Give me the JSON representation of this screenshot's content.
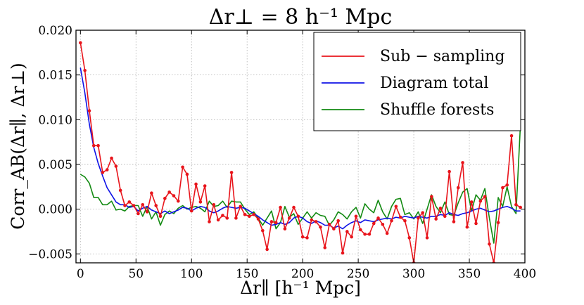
{
  "chart_data": {
    "type": "line",
    "title": "Δr⊥ = 8 h⁻¹ Mpc",
    "xlabel": "Δr∥ [h⁻¹ Mpc]",
    "ylabel": "Corr_AB(Δr∥, Δr⊥)",
    "xlim": [
      -4,
      400
    ],
    "ylim": [
      -0.006,
      0.02
    ],
    "xticks": [
      0,
      50,
      100,
      150,
      200,
      250,
      300,
      350,
      400
    ],
    "xtick_labels": [
      "0",
      "50",
      "100",
      "150",
      "200",
      "250",
      "300",
      "350",
      "400"
    ],
    "yticks": [
      -0.005,
      0.0,
      0.005,
      0.01,
      0.015,
      0.02
    ],
    "ytick_labels": [
      "−0.005",
      "0.000",
      "0.005",
      "0.010",
      "0.015",
      "0.020"
    ],
    "grid": true,
    "legend_position": "top-right",
    "series": [
      {
        "name": "Sub − sampling",
        "color": "#e8141b",
        "markers": true,
        "x": [
          0,
          4,
          8,
          12,
          16,
          20,
          24,
          28,
          32,
          36,
          40,
          44,
          48,
          52,
          56,
          60,
          64,
          68,
          72,
          76,
          80,
          84,
          88,
          92,
          96,
          100,
          104,
          108,
          112,
          116,
          120,
          124,
          128,
          132,
          136,
          140,
          144,
          148,
          152,
          156,
          160,
          164,
          168,
          172,
          176,
          180,
          184,
          188,
          192,
          196,
          200,
          204,
          208,
          212,
          216,
          220,
          224,
          228,
          232,
          236,
          240,
          244,
          248,
          252,
          256,
          260,
          264,
          268,
          272,
          276,
          280,
          284,
          288,
          292,
          296,
          300,
          304,
          308,
          312,
          316,
          320,
          324,
          328,
          332,
          336,
          340,
          344,
          348,
          352,
          356,
          360,
          364,
          368,
          372,
          376,
          380,
          384,
          388,
          392,
          396
        ],
        "y": [
          0.0186,
          0.0155,
          0.011,
          0.0071,
          0.0071,
          0.0041,
          0.0044,
          0.0057,
          0.0048,
          0.0021,
          0.0004,
          0.0008,
          0.0004,
          -0.0005,
          0.0005,
          -0.0003,
          0.0018,
          0.0004,
          -0.0008,
          0.0012,
          0.0019,
          0.0015,
          0.0009,
          0.0047,
          0.0039,
          -0.0002,
          0.0028,
          0.0008,
          0.0026,
          -0.0014,
          0.0005,
          -0.0012,
          -0.0007,
          -0.001,
          0.0041,
          -0.001,
          0.0003,
          -0.0006,
          -0.0008,
          -0.0006,
          -0.0011,
          -0.0024,
          -0.0045,
          -0.0014,
          -0.0015,
          0.0002,
          -0.0022,
          -0.001,
          0.0002,
          -0.0008,
          -0.0031,
          -0.0032,
          -0.0012,
          -0.0014,
          -0.002,
          -0.0043,
          -0.0017,
          -0.0022,
          -0.0013,
          -0.0049,
          -0.0025,
          -0.0031,
          -0.0008,
          -0.0023,
          -0.0028,
          -0.0028,
          -0.0016,
          -0.001,
          -0.0017,
          -0.0027,
          -0.0013,
          0.0003,
          -0.0009,
          -0.0013,
          -0.0032,
          -0.006,
          -0.001,
          -0.0004,
          -0.0032,
          0.0014,
          -0.0011,
          0.0001,
          -0.0008,
          0.0042,
          -0.0014,
          0.0024,
          0.0052,
          -0.002,
          0.0008,
          -0.0016,
          0.0009,
          0.0014,
          -0.0039,
          -0.006,
          -0.0015,
          0.0024,
          0.0027,
          0.0082,
          0.0005,
          0.0002
        ]
      },
      {
        "name": "Diagram total",
        "color": "#0f12e6",
        "markers": false,
        "x": [
          0,
          4,
          8,
          12,
          16,
          20,
          24,
          28,
          32,
          36,
          40,
          44,
          48,
          52,
          56,
          60,
          64,
          68,
          72,
          76,
          80,
          84,
          88,
          92,
          96,
          100,
          104,
          108,
          112,
          116,
          120,
          124,
          128,
          132,
          136,
          140,
          144,
          148,
          152,
          156,
          160,
          164,
          168,
          172,
          176,
          180,
          184,
          188,
          192,
          196,
          200,
          204,
          208,
          212,
          216,
          220,
          224,
          228,
          232,
          236,
          240,
          244,
          248,
          252,
          256,
          260,
          264,
          268,
          272,
          276,
          280,
          284,
          288,
          292,
          296,
          300,
          304,
          308,
          312,
          316,
          320,
          324,
          328,
          332,
          336,
          340,
          344,
          348,
          352,
          356,
          360,
          364,
          368,
          372,
          376,
          380,
          384,
          388,
          392,
          396
        ],
        "y": [
          0.0158,
          0.013,
          0.0095,
          0.0069,
          0.0051,
          0.0037,
          0.0024,
          0.0016,
          0.0008,
          0.0005,
          0.0005,
          0.0002,
          0.0003,
          -0.0002,
          0.0001,
          0.0003,
          -0.0001,
          -0.0003,
          -0.0005,
          -0.0002,
          -0.0005,
          -0.0003,
          -0.0001,
          0.0002,
          0.0001,
          -0.0002,
          0.0001,
          0.0003,
          0.0002,
          -0.0002,
          -0.0004,
          -0.0002,
          0.0001,
          0.0003,
          0.0002,
          0.0001,
          0.0002,
          0.0001,
          -0.0002,
          -0.0005,
          -0.0008,
          -0.0012,
          -0.0015,
          -0.0018,
          -0.0017,
          -0.0015,
          -0.0017,
          -0.0015,
          -0.001,
          -0.0008,
          -0.001,
          -0.0014,
          -0.0016,
          -0.0013,
          -0.0015,
          -0.0018,
          -0.0018,
          -0.0021,
          -0.0019,
          -0.0022,
          -0.0018,
          -0.0015,
          -0.0013,
          -0.0015,
          -0.0012,
          -0.0013,
          -0.0014,
          -0.0012,
          -0.0011,
          -0.001,
          -0.0011,
          -0.0009,
          -0.001,
          -0.0008,
          -0.0009,
          -0.001,
          -0.0008,
          -0.0009,
          -0.001,
          -0.0008,
          -0.0008,
          -0.0006,
          -0.0007,
          -0.0004,
          -0.0006,
          -0.0007,
          -0.0005,
          -0.0004,
          -0.0002,
          0.0,
          0.0001,
          -0.0001,
          -0.0003,
          -0.0002,
          0.0,
          0.0002,
          0.0003,
          0.0001,
          -0.0002,
          -0.0002
        ]
      },
      {
        "name": "Shuffle forests",
        "color": "#138a12",
        "markers": false,
        "x": [
          0,
          4,
          8,
          12,
          16,
          20,
          24,
          28,
          32,
          36,
          40,
          44,
          48,
          52,
          56,
          60,
          64,
          68,
          72,
          76,
          80,
          84,
          88,
          92,
          96,
          100,
          104,
          108,
          112,
          116,
          120,
          124,
          128,
          132,
          136,
          140,
          144,
          148,
          152,
          156,
          160,
          164,
          168,
          172,
          176,
          180,
          184,
          188,
          192,
          196,
          200,
          204,
          208,
          212,
          216,
          220,
          224,
          228,
          232,
          236,
          240,
          244,
          248,
          252,
          256,
          260,
          264,
          268,
          272,
          276,
          280,
          284,
          288,
          292,
          296,
          300,
          304,
          308,
          312,
          316,
          320,
          324,
          328,
          332,
          336,
          340,
          344,
          348,
          352,
          356,
          360,
          364,
          368,
          372,
          376,
          380,
          384,
          388,
          392,
          396
        ],
        "y": [
          0.0039,
          0.0036,
          0.0029,
          0.0013,
          0.0013,
          0.0005,
          0.0005,
          0.0009,
          -0.0001,
          0.0,
          -0.0002,
          0.0003,
          0.0004,
          0.0004,
          -0.0008,
          0.0003,
          -0.0011,
          -0.0003,
          -0.0018,
          -0.0006,
          -0.0002,
          -0.0005,
          0.0001,
          0.0004,
          0.0,
          0.0002,
          0.0003,
          0.0001,
          -0.0003,
          0.0009,
          0.0003,
          0.0004,
          0.0009,
          0.0002,
          0.0009,
          0.0008,
          0.0008,
          0.0,
          -0.0006,
          -0.0003,
          -0.001,
          -0.0018,
          -0.001,
          -0.0002,
          -0.0022,
          -0.0015,
          0.0003,
          -0.0009,
          -0.0005,
          -0.0017,
          -0.001,
          -0.0003,
          -0.001,
          -0.0004,
          -0.0007,
          -0.0008,
          -0.0018,
          -0.0012,
          -0.0003,
          -0.0006,
          -0.0011,
          -0.0003,
          0.0002,
          -0.001,
          0.0006,
          0.0,
          -0.0004,
          0.001,
          -0.0003,
          -0.0011,
          0.0003,
          0.0011,
          0.0012,
          -0.0006,
          -0.0004,
          -0.0011,
          -0.0003,
          -0.0016,
          0.0,
          0.0016,
          0.0003,
          -0.0004,
          0.0008,
          -0.0006,
          -0.0007,
          0.0007,
          0.0019,
          0.0023,
          -0.0002,
          0.0016,
          0.001,
          0.0023,
          -0.001,
          -0.0038,
          0.0013,
          0.0003,
          0.0025,
          0.0003,
          -0.0005,
          0.0095
        ]
      }
    ]
  }
}
